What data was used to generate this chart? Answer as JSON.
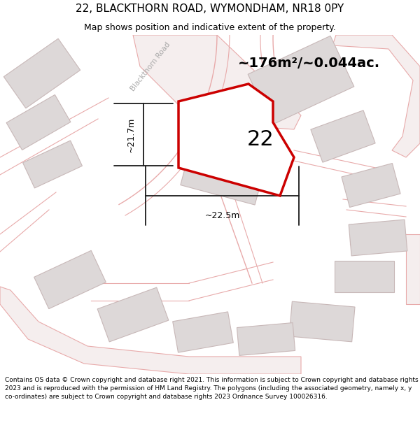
{
  "title": "22, BLACKTHORN ROAD, WYMONDHAM, NR18 0PY",
  "subtitle": "Map shows position and indicative extent of the property.",
  "footer": "Contains OS data © Crown copyright and database right 2021. This information is subject to Crown copyright and database rights 2023 and is reproduced with the permission of HM Land Registry. The polygons (including the associated geometry, namely x, y co-ordinates) are subject to Crown copyright and database rights 2023 Ordnance Survey 100026316.",
  "area_label": "~176m²/~0.044ac.",
  "number_label": "22",
  "width_label": "~22.5m",
  "height_label": "~21.7m",
  "road_label": "Blackthorn Road",
  "map_bg": "#f7f4f4",
  "plot_edge": "#cc0000",
  "road_color": "#e8aaaa",
  "road_fill": "#f5eeee",
  "building_fill": "#ddd8d8",
  "building_edge": "#c8b8b8",
  "dim_color": "#1a1a1a",
  "title_fontsize": 11,
  "subtitle_fontsize": 9,
  "footer_fontsize": 6.5,
  "area_fontsize": 14,
  "number_fontsize": 22
}
